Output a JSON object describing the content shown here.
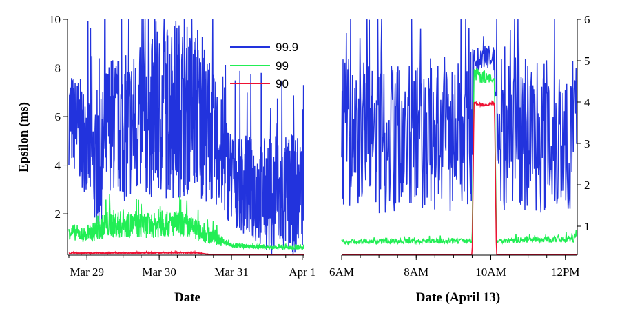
{
  "colors": {
    "p999": "#2233dd",
    "p99": "#22ee55",
    "p90": "#ee1133",
    "axis": "#000000"
  },
  "legend": [
    {
      "label": "99.9",
      "color": "#2233dd"
    },
    {
      "label": "99",
      "color": "#22ee55"
    },
    {
      "label": "90",
      "color": "#ee1133"
    }
  ],
  "chart_data": [
    {
      "type": "line",
      "xlabel": "Date",
      "ylabel": "Epsilon (ms)",
      "ylim": [
        0.3,
        10
      ],
      "yticks": [
        "2",
        "4",
        "6",
        "8",
        "10"
      ],
      "xticks": [
        "Mar 29",
        "Mar 30",
        "Mar 31",
        "Apr 1"
      ],
      "xlim_days": [
        -0.25,
        3.0
      ],
      "series": [
        {
          "name": "99.9",
          "x_days": [
            -0.25,
            0.0,
            0.15,
            0.3,
            0.5,
            0.8,
            1.2,
            1.5,
            1.8,
            2.0,
            2.3,
            2.6,
            2.9,
            3.0
          ],
          "base": [
            6.0,
            5.0,
            3.5,
            5.8,
            5.5,
            5.8,
            6.4,
            6.2,
            4.8,
            3.5,
            3.0,
            2.7,
            2.8,
            3.0
          ],
          "spread": [
            2.0,
            2.3,
            2.5,
            2.8,
            3.0,
            3.2,
            3.8,
            3.4,
            2.6,
            2.0,
            2.2,
            2.5,
            2.5,
            2.2
          ]
        },
        {
          "name": "99",
          "x_days": [
            -0.25,
            0.0,
            0.3,
            0.8,
            1.3,
            1.7,
            2.0,
            2.5,
            3.0
          ],
          "base": [
            1.3,
            1.1,
            1.6,
            1.5,
            1.6,
            1.1,
            0.7,
            0.62,
            0.6
          ],
          "spread": [
            0.35,
            0.3,
            0.6,
            0.5,
            0.55,
            0.35,
            0.1,
            0.06,
            0.08
          ]
        },
        {
          "name": "90",
          "x_days": [
            -0.25,
            1.5,
            1.7,
            3.0
          ],
          "base": [
            0.38,
            0.4,
            0.32,
            0.3
          ],
          "spread": [
            0.02,
            0.02,
            0.01,
            0.01
          ]
        }
      ]
    },
    {
      "type": "line",
      "xlabel": "Date (April 13)",
      "ylabel": "",
      "ylim": [
        0.3,
        6
      ],
      "yticks": [
        "1",
        "2",
        "3",
        "4",
        "5",
        "6"
      ],
      "xticks": [
        "6AM",
        "8AM",
        "10AM",
        "12PM"
      ],
      "xlim_hours": [
        6,
        12.3
      ],
      "series": [
        {
          "name": "99.9",
          "x_hours": [
            6,
            9.5,
            9.55,
            10.0,
            10.1,
            10.15,
            12.3
          ],
          "base": [
            3.2,
            3.2,
            5.0,
            5.1,
            5.0,
            3.2,
            3.2
          ],
          "spread": [
            1.9,
            1.9,
            0.3,
            0.3,
            0.3,
            1.9,
            1.9
          ]
        },
        {
          "name": "99",
          "x_hours": [
            6,
            9.5,
            9.55,
            10.1,
            10.15,
            12.3
          ],
          "base": [
            0.62,
            0.65,
            4.7,
            4.5,
            0.65,
            0.7
          ],
          "spread": [
            0.06,
            0.06,
            0.2,
            0.1,
            0.06,
            0.1
          ]
        },
        {
          "name": "90",
          "x_hours": [
            6,
            9.5,
            9.55,
            10.1,
            10.15,
            12.3
          ],
          "base": [
            0.3,
            0.3,
            3.95,
            3.95,
            0.3,
            0.3
          ],
          "spread": [
            0.01,
            0.01,
            0.05,
            0.05,
            0.01,
            0.01
          ]
        }
      ]
    }
  ]
}
